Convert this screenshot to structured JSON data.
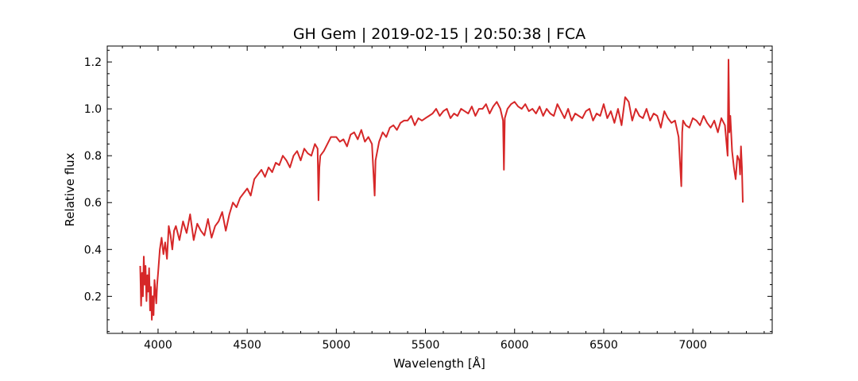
{
  "chart_data": {
    "type": "line",
    "title": "GH Gem | 2019-02-15 | 20:50:38 | FCA",
    "xlabel": "Wavelength [Å]",
    "ylabel": "Relative flux",
    "xlim": [
      3715,
      7445
    ],
    "ylim": [
      0.042,
      1.268
    ],
    "x_ticks": [
      4000,
      4500,
      5000,
      5500,
      6000,
      6500,
      7000
    ],
    "x_tick_labels": [
      "4000",
      "4500",
      "5000",
      "5500",
      "6000",
      "6500",
      "7000"
    ],
    "y_ticks": [
      0.2,
      0.4,
      0.6,
      0.8,
      1.0,
      1.2
    ],
    "y_tick_labels": [
      "0.2",
      "0.4",
      "0.6",
      "0.8",
      "1.0",
      "1.2"
    ],
    "x_minor_step": 100,
    "y_minor_step": 0.05,
    "tick_direction": "in",
    "grid": false,
    "legend": "none",
    "series": [
      {
        "color": "#d62728",
        "x": [
          3900,
          3905,
          3910,
          3915,
          3920,
          3925,
          3930,
          3935,
          3940,
          3945,
          3950,
          3955,
          3960,
          3965,
          3970,
          3975,
          3980,
          3985,
          3990,
          3995,
          4000,
          4010,
          4020,
          4030,
          4040,
          4050,
          4060,
          4070,
          4080,
          4090,
          4100,
          4120,
          4140,
          4160,
          4180,
          4200,
          4220,
          4240,
          4260,
          4280,
          4300,
          4320,
          4340,
          4360,
          4380,
          4400,
          4420,
          4440,
          4460,
          4480,
          4500,
          4520,
          4540,
          4560,
          4580,
          4600,
          4620,
          4640,
          4660,
          4680,
          4700,
          4720,
          4740,
          4760,
          4780,
          4800,
          4820,
          4840,
          4860,
          4880,
          4895,
          4900,
          4905,
          4910,
          4930,
          4950,
          4970,
          5000,
          5020,
          5040,
          5060,
          5080,
          5100,
          5120,
          5140,
          5160,
          5180,
          5200,
          5210,
          5215,
          5220,
          5240,
          5260,
          5280,
          5300,
          5320,
          5340,
          5360,
          5380,
          5400,
          5420,
          5440,
          5460,
          5480,
          5500,
          5520,
          5540,
          5560,
          5580,
          5600,
          5620,
          5640,
          5660,
          5680,
          5700,
          5720,
          5740,
          5760,
          5780,
          5800,
          5820,
          5840,
          5860,
          5880,
          5900,
          5920,
          5935,
          5940,
          5945,
          5960,
          5980,
          6000,
          6020,
          6040,
          6060,
          6080,
          6100,
          6120,
          6140,
          6160,
          6180,
          6200,
          6220,
          6240,
          6260,
          6280,
          6300,
          6320,
          6340,
          6360,
          6380,
          6400,
          6420,
          6440,
          6460,
          6480,
          6500,
          6520,
          6540,
          6560,
          6580,
          6600,
          6620,
          6640,
          6660,
          6680,
          6700,
          6720,
          6740,
          6760,
          6780,
          6800,
          6820,
          6840,
          6860,
          6880,
          6900,
          6920,
          6935,
          6940,
          6945,
          6960,
          6980,
          7000,
          7020,
          7040,
          7060,
          7080,
          7100,
          7120,
          7140,
          7160,
          7180,
          7195,
          7200,
          7205,
          7210,
          7220,
          7230,
          7240,
          7250,
          7260,
          7265,
          7270,
          7275,
          7280
        ],
        "y": [
          0.33,
          0.16,
          0.3,
          0.2,
          0.37,
          0.25,
          0.33,
          0.18,
          0.29,
          0.22,
          0.32,
          0.14,
          0.24,
          0.1,
          0.2,
          0.12,
          0.27,
          0.22,
          0.17,
          0.25,
          0.3,
          0.4,
          0.45,
          0.38,
          0.43,
          0.36,
          0.5,
          0.46,
          0.4,
          0.48,
          0.5,
          0.44,
          0.52,
          0.47,
          0.55,
          0.44,
          0.51,
          0.48,
          0.46,
          0.53,
          0.45,
          0.5,
          0.52,
          0.56,
          0.48,
          0.55,
          0.6,
          0.58,
          0.62,
          0.64,
          0.66,
          0.63,
          0.7,
          0.72,
          0.74,
          0.71,
          0.75,
          0.73,
          0.77,
          0.76,
          0.8,
          0.78,
          0.75,
          0.8,
          0.82,
          0.78,
          0.83,
          0.81,
          0.8,
          0.85,
          0.83,
          0.61,
          0.75,
          0.8,
          0.82,
          0.85,
          0.88,
          0.88,
          0.86,
          0.87,
          0.84,
          0.89,
          0.9,
          0.87,
          0.91,
          0.86,
          0.88,
          0.85,
          0.7,
          0.63,
          0.78,
          0.86,
          0.9,
          0.88,
          0.92,
          0.93,
          0.91,
          0.94,
          0.95,
          0.95,
          0.97,
          0.93,
          0.96,
          0.95,
          0.96,
          0.97,
          0.98,
          1.0,
          0.97,
          0.99,
          1.0,
          0.96,
          0.98,
          0.97,
          1.0,
          0.99,
          0.98,
          1.01,
          0.97,
          1.0,
          1.0,
          1.02,
          0.98,
          1.01,
          1.03,
          1.0,
          0.95,
          0.74,
          0.96,
          1.0,
          1.02,
          1.03,
          1.01,
          1.0,
          1.02,
          0.99,
          1.0,
          0.98,
          1.01,
          0.97,
          1.0,
          0.98,
          0.97,
          1.02,
          0.99,
          0.96,
          1.0,
          0.95,
          0.98,
          0.97,
          0.96,
          0.99,
          1.0,
          0.95,
          0.98,
          0.97,
          1.02,
          0.96,
          0.99,
          0.94,
          1.0,
          0.93,
          1.05,
          1.03,
          0.95,
          1.0,
          0.97,
          0.96,
          1.0,
          0.95,
          0.98,
          0.97,
          0.92,
          0.99,
          0.96,
          0.94,
          0.95,
          0.88,
          0.67,
          0.9,
          0.95,
          0.93,
          0.92,
          0.96,
          0.95,
          0.93,
          0.97,
          0.94,
          0.92,
          0.95,
          0.9,
          0.96,
          0.93,
          0.8,
          1.21,
          0.9,
          0.97,
          0.82,
          0.75,
          0.7,
          0.8,
          0.78,
          0.72,
          0.84,
          0.75,
          0.6
        ]
      }
    ]
  }
}
